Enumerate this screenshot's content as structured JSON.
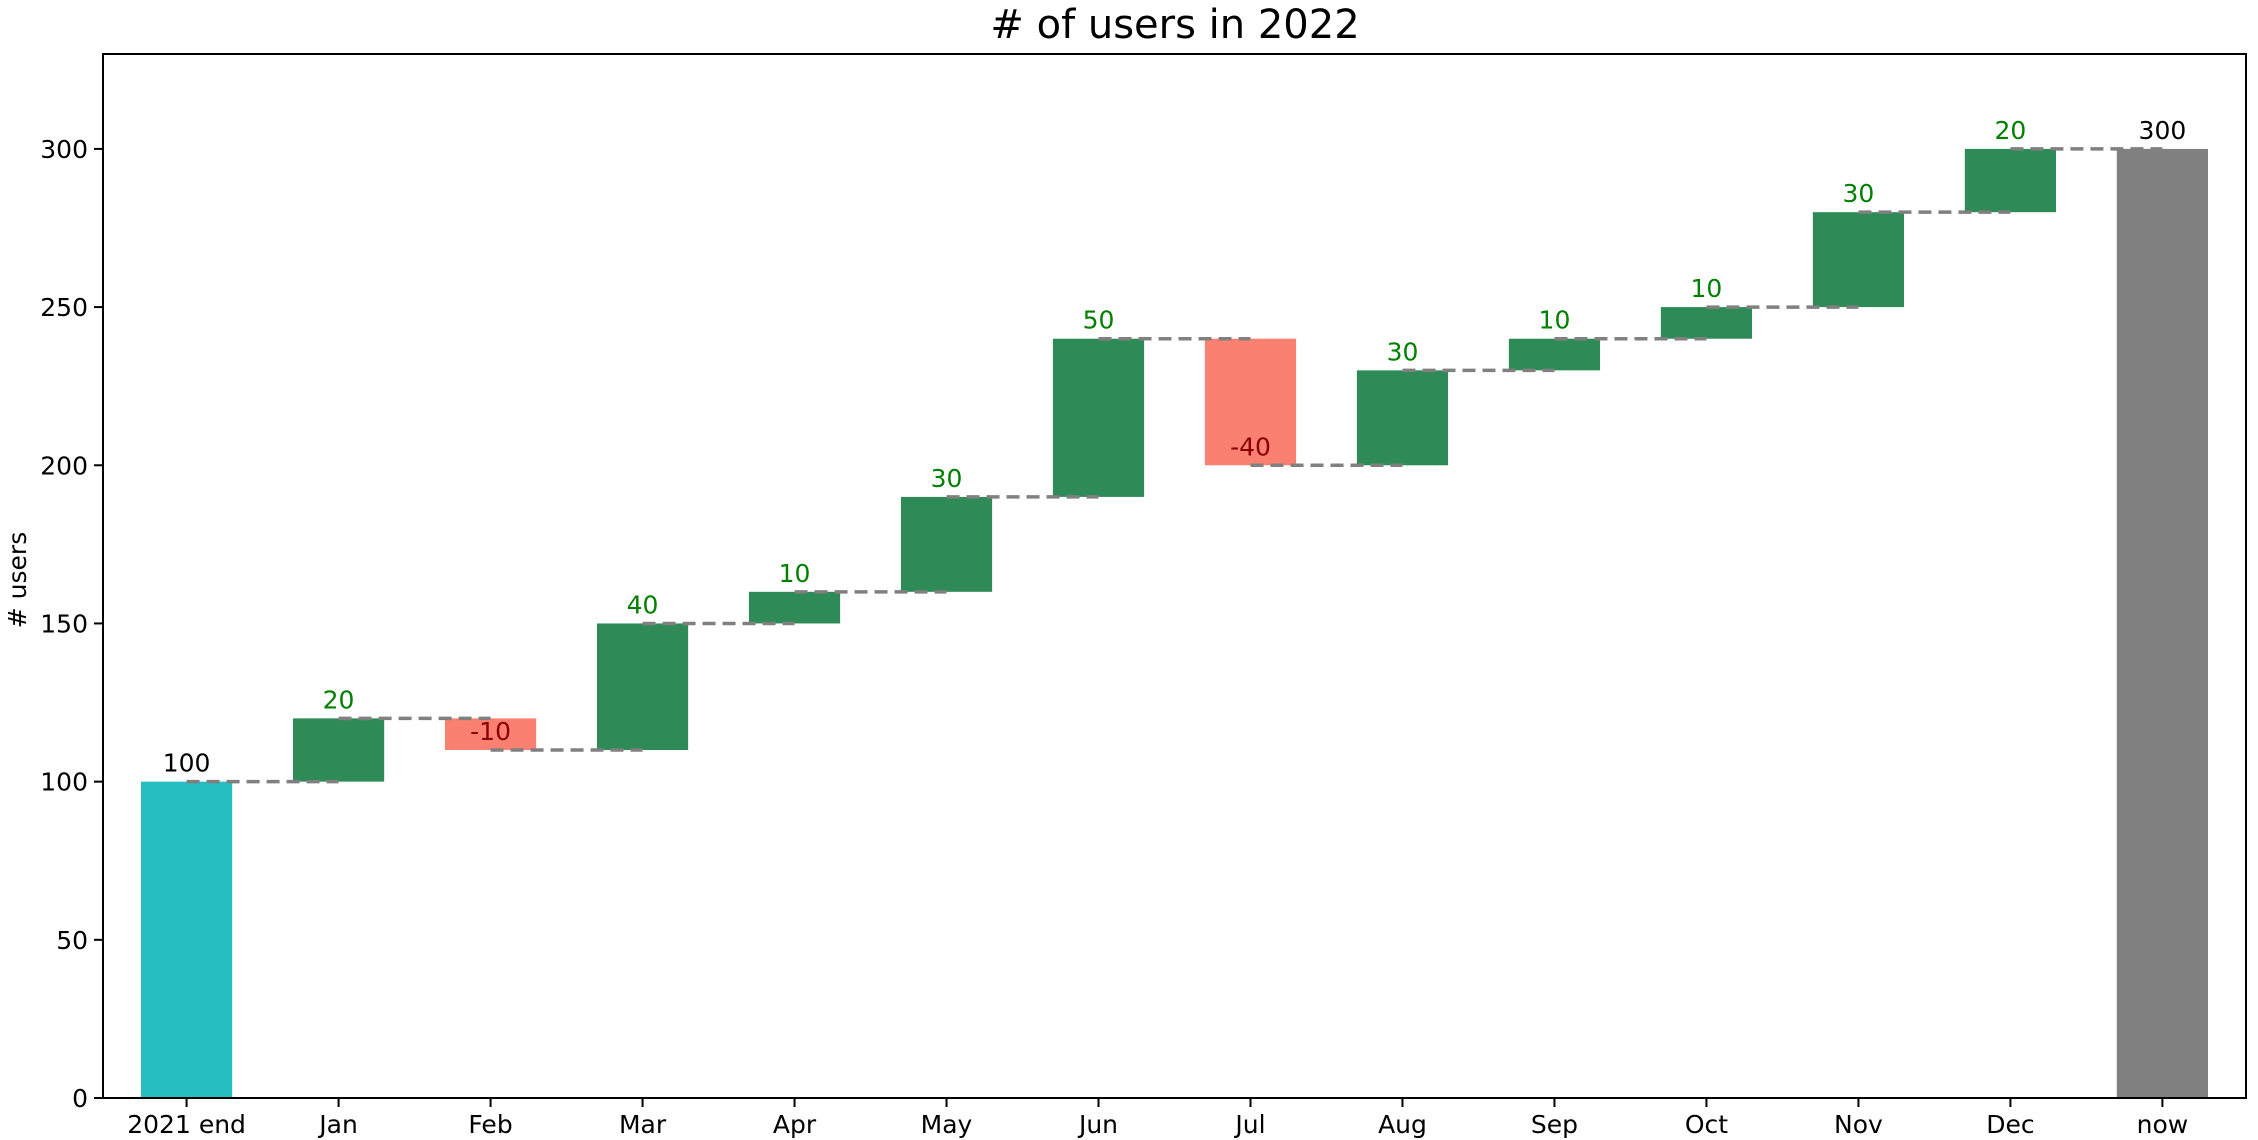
{
  "chart_data": {
    "type": "bar",
    "subtype": "waterfall",
    "title": "# of users in 2022",
    "xlabel": "",
    "ylabel": "# users",
    "ylim": [
      0,
      330
    ],
    "yticks": [
      0,
      50,
      100,
      150,
      200,
      250,
      300
    ],
    "grid": false,
    "legend": "none",
    "categories": [
      "2021 end",
      "Jan",
      "Feb",
      "Mar",
      "Apr",
      "May",
      "Jun",
      "Jul",
      "Aug",
      "Sep",
      "Oct",
      "Nov",
      "Dec",
      "now"
    ],
    "changes": [
      100,
      20,
      -10,
      40,
      10,
      30,
      50,
      -40,
      30,
      10,
      10,
      30,
      20,
      300
    ],
    "kinds": [
      "start",
      "delta",
      "delta",
      "delta",
      "delta",
      "delta",
      "delta",
      "delta",
      "delta",
      "delta",
      "delta",
      "delta",
      "delta",
      "total"
    ],
    "labels": [
      "100",
      "20",
      "-10",
      "40",
      "10",
      "30",
      "50",
      "-40",
      "30",
      "10",
      "10",
      "30",
      "20",
      "300"
    ],
    "colors": {
      "start": "#26bec1",
      "increase": "#2e8b57",
      "decrease": "#fa8072",
      "total": "#808080",
      "connector": "#808080",
      "label_increase": "#008000",
      "label_decrease": "#8b0000",
      "label_neutral": "#000000"
    }
  }
}
